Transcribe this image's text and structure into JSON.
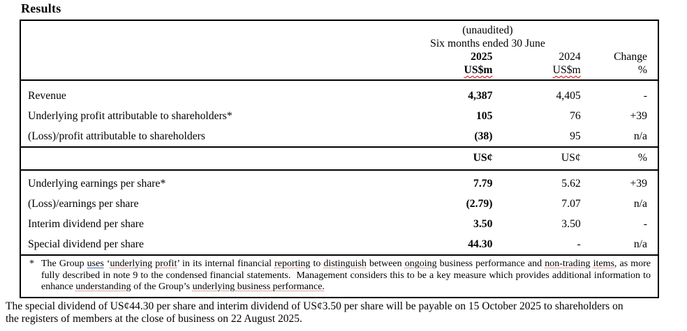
{
  "page": {
    "title": "Results"
  },
  "colors": {
    "text": "#000000",
    "background": "#ffffff",
    "spell_mark_red": "#d40000",
    "grammar_mark_blue": "#3a6bc9",
    "table_border": "#000000"
  },
  "table": {
    "header": {
      "unaudited": "(unaudited)",
      "period": "Six months ended 30 June",
      "year_2025": "2025",
      "year_2024": "2024",
      "change": "Change",
      "unit_2025": "US$m",
      "unit_2024": "US$m",
      "unit_change": "%"
    },
    "rows_usdm": [
      {
        "label": "Revenue",
        "v2025": "4,387",
        "v2024": "4,405",
        "change": "-"
      },
      {
        "label": "Underlying profit attributable to shareholders*",
        "v2025": "105",
        "v2024": "76",
        "change": "+39"
      },
      {
        "label": "(Loss)/profit attributable to shareholders",
        "v2025": "(38)",
        "v2024": "95",
        "change": "n/a"
      }
    ],
    "unit_row": {
      "u2025": "US¢",
      "u2024": "US¢",
      "uchange": "%"
    },
    "rows_cents": [
      {
        "label": "Underlying earnings per share*",
        "v2025": "7.79",
        "v2024": "5.62",
        "change": "+39"
      },
      {
        "label": "(Loss)/earnings per share",
        "v2025": "(2.79)",
        "v2024": "7.07",
        "change": "n/a"
      },
      {
        "label": "Interim dividend per share",
        "v2025": "3.50",
        "v2024": "3.50",
        "change": "-"
      },
      {
        "label": "Special dividend per share",
        "v2025": "44.30",
        "v2024": "-",
        "change": "n/a"
      }
    ],
    "footnote": {
      "marker": "*",
      "segments": [
        {
          "t": "The Group "
        },
        {
          "t": "uses",
          "m": "grammar"
        },
        {
          "t": " ‘"
        },
        {
          "t": "underlying",
          "m": "spell"
        },
        {
          "t": " "
        },
        {
          "t": "profit",
          "m": "spell"
        },
        {
          "t": "’ in its internal financial "
        },
        {
          "t": "reporting",
          "m": "spell"
        },
        {
          "t": " to "
        },
        {
          "t": "distinguish",
          "m": "spell"
        },
        {
          "t": " between "
        },
        {
          "t": "ongoing",
          "m": "spell"
        },
        {
          "t": " business performance and "
        },
        {
          "t": "non-trading",
          "m": "spell"
        },
        {
          "t": " "
        },
        {
          "t": "items,",
          "m": "spell"
        },
        {
          "t": " as more fully described in note 9 to the condensed financial statements.  Management considers this to be a key measure which provides additional information to enhance "
        },
        {
          "t": "understanding",
          "m": "spell"
        },
        {
          "t": " of the Group’s "
        },
        {
          "t": "underlying business performance.",
          "m": "spell"
        }
      ]
    }
  },
  "below_note": {
    "line1": "The special dividend of US¢44.30 per share and interim dividend of US¢3.50 per share will be payable on 15 October 2025 to shareholders on",
    "line2": "the registers of members at the close of business on 22 August 2025."
  }
}
